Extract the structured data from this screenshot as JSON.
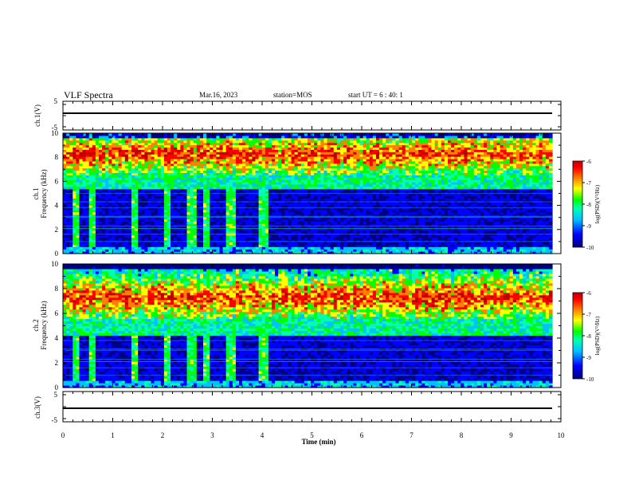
{
  "header": {
    "title": "VLF Spectra",
    "date": "Mar.16, 2023",
    "station": "station=MOS",
    "start_ut": "start UT =  6 : 40: 1"
  },
  "chart_data": [
    {
      "id": "ch1-voltage",
      "type": "line",
      "ylabel": "ch.1(V)",
      "ylim": [
        -5,
        5
      ],
      "y_ticks": [
        "5",
        "-5"
      ],
      "series": [
        {
          "values": [
            0.0,
            0.0
          ]
        }
      ],
      "xlim": [
        0,
        9.83
      ]
    },
    {
      "id": "ch1-spectrogram",
      "type": "heatmap",
      "ylabel": "ch.1\nFrequency (kHz)",
      "ylim": [
        0,
        10
      ],
      "y_ticks": [
        "0",
        "2",
        "4",
        "6",
        "8",
        "10"
      ],
      "band_center_khz": 8.3,
      "band_edge_khz": 6.5,
      "vertical_bursts_min": [
        0.28,
        0.58,
        1.45,
        2.08,
        2.58,
        2.88,
        3.38,
        4.03
      ],
      "colorbar": {
        "label": "log(PSD)(V²/Hz)",
        "min": -10,
        "max": -6,
        "ticks": [
          "-6",
          "-7",
          "-8",
          "-9",
          "-10"
        ]
      }
    },
    {
      "id": "ch2-spectrogram",
      "type": "heatmap",
      "ylabel": "ch.2\nFrequency (kHz)",
      "ylim": [
        0,
        10
      ],
      "y_ticks": [
        "0",
        "2",
        "4",
        "6",
        "8",
        "10"
      ],
      "band_center_khz": 7.3,
      "band_edge_khz": 5.5,
      "vertical_bursts_min": [
        0.28,
        0.58,
        1.45,
        2.08,
        2.58,
        2.88,
        3.38,
        4.03
      ],
      "colorbar": {
        "label": "log(PSD)(V²/Hz)",
        "min": -10,
        "max": -6,
        "ticks": [
          "-6",
          "-7",
          "-8",
          "-9",
          "-10"
        ]
      }
    },
    {
      "id": "ch3-voltage",
      "type": "line",
      "ylabel": "ch.3(V)",
      "ylim": [
        -5,
        5
      ],
      "y_ticks": [
        "5",
        "-5"
      ],
      "series": [
        {
          "values": [
            0.0,
            0.0
          ]
        }
      ],
      "xlim": [
        0,
        9.83
      ]
    }
  ],
  "x_axis": {
    "xlabel": "Time  (min)",
    "xlim": [
      0,
      10
    ],
    "ticks": [
      "0",
      "1",
      "2",
      "3",
      "4",
      "5",
      "6",
      "7",
      "8",
      "9",
      "10"
    ]
  },
  "colormap": [
    "#000080",
    "#0000ff",
    "#00c0ff",
    "#00ffb0",
    "#00ff00",
    "#ffff00",
    "#ff8000",
    "#ff0000",
    "#c00000"
  ]
}
